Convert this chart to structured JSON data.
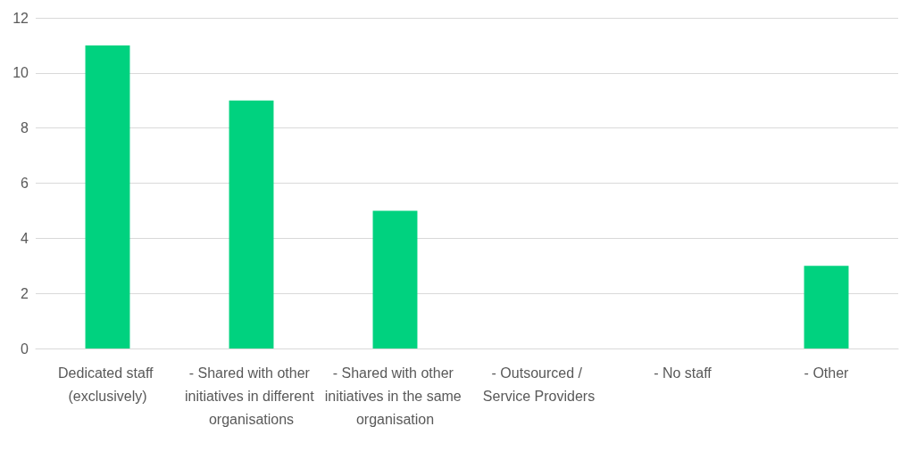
{
  "chart_data": {
    "type": "bar",
    "categories": [
      "Dedicated staff (exclusively)",
      "- Shared with other initiatives in different organisations",
      "- Shared with other initiatives in the same organisation",
      "- Outsourced / Service Providers",
      "- No staff",
      "- Other"
    ],
    "values": [
      11,
      9,
      5,
      0,
      0,
      3
    ],
    "color": "#00d27f",
    "ylim": [
      0,
      12
    ],
    "yticks": [
      0,
      2,
      4,
      6,
      8,
      10,
      12
    ],
    "grid": "y"
  }
}
